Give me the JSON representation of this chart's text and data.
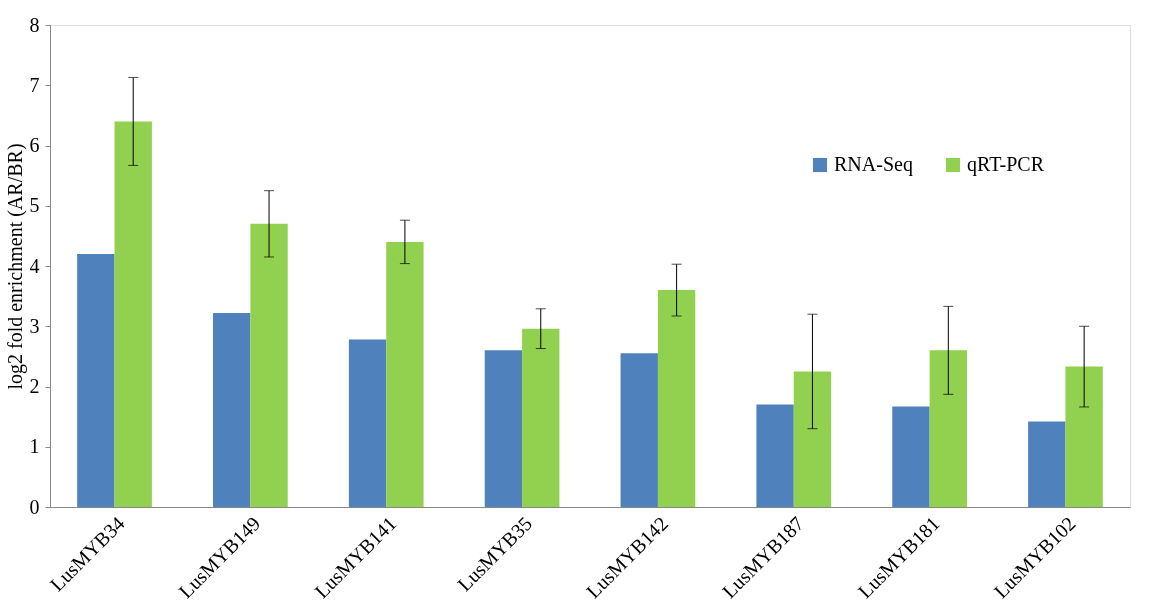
{
  "chart_data": {
    "type": "bar",
    "ylabel": "log2 fold enrichment (AR/BR)",
    "categories": [
      "LusMYB34",
      "LusMYB149",
      "LusMYB141",
      "LusMYB35",
      "LusMYB142",
      "LusMYB187",
      "LusMYB181",
      "LusMYB102"
    ],
    "series": [
      {
        "name": "RNA-Seq",
        "color": "#4f81bd",
        "values": [
          4.2,
          3.22,
          2.78,
          2.6,
          2.55,
          1.7,
          1.67,
          1.42
        ]
      },
      {
        "name": "qRT-PCR",
        "color": "#92d050",
        "values": [
          6.4,
          4.7,
          4.4,
          2.96,
          3.6,
          2.25,
          2.6,
          2.33
        ],
        "errors": [
          0.73,
          0.55,
          0.36,
          0.33,
          0.43,
          0.95,
          0.73,
          0.67
        ]
      }
    ],
    "ylim": [
      0,
      8
    ],
    "yticks": [
      0,
      1,
      2,
      3,
      4,
      5,
      6,
      7,
      8
    ],
    "grid": false,
    "legend": "top right"
  }
}
